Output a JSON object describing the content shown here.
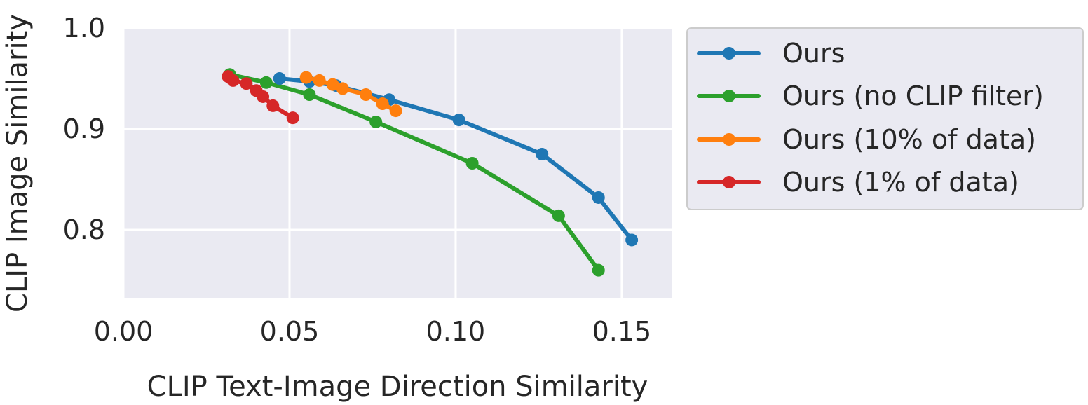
{
  "chart_data": {
    "type": "line",
    "title": "",
    "xlabel": "CLIP Text-Image Direction Similarity",
    "ylabel": "CLIP Image Similarity",
    "xlim": [
      0.0,
      0.165
    ],
    "ylim": [
      0.732,
      1.0
    ],
    "xticks": [
      0.0,
      0.05,
      0.1,
      0.15
    ],
    "xtick_labels": [
      "0.00",
      "0.05",
      "0.10",
      "0.15"
    ],
    "yticks": [
      0.8,
      0.9,
      1.0
    ],
    "ytick_labels": [
      "0.8",
      "0.9",
      "1.0"
    ],
    "grid": true,
    "legend_position": "outside right, top",
    "series": [
      {
        "name": "Ours",
        "color": "#1f77b4",
        "x": [
          0.047,
          0.056,
          0.064,
          0.08,
          0.101,
          0.126,
          0.143,
          0.153
        ],
        "y": [
          0.95,
          0.947,
          0.943,
          0.929,
          0.909,
          0.875,
          0.832,
          0.79
        ]
      },
      {
        "name": "Ours (no CLIP filter)",
        "color": "#2ca02c",
        "x": [
          0.032,
          0.043,
          0.056,
          0.076,
          0.105,
          0.131,
          0.143
        ],
        "y": [
          0.954,
          0.946,
          0.934,
          0.907,
          0.866,
          0.814,
          0.76
        ]
      },
      {
        "name": "Ours (10% of data)",
        "color": "#ff7f0e",
        "x": [
          0.055,
          0.059,
          0.063,
          0.066,
          0.073,
          0.078,
          0.082
        ],
        "y": [
          0.951,
          0.948,
          0.944,
          0.94,
          0.934,
          0.925,
          0.918
        ]
      },
      {
        "name": "Ours (1% of data)",
        "color": "#d62728",
        "x": [
          0.0315,
          0.033,
          0.037,
          0.04,
          0.042,
          0.045,
          0.051
        ],
        "y": [
          0.952,
          0.948,
          0.945,
          0.938,
          0.932,
          0.923,
          0.911
        ]
      }
    ]
  }
}
